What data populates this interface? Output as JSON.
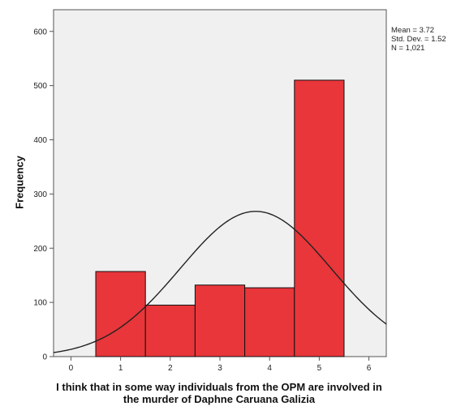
{
  "chart_data": {
    "type": "bar",
    "subtype": "histogram",
    "xlabel": "I think that in some way individuals from the OPM are involved in the murder of Daphne Caruana Galizia",
    "ylabel": "Frequency",
    "xlim": [
      -0.35,
      6.35
    ],
    "ylim": [
      0,
      640
    ],
    "x_ticks": [
      0,
      1,
      2,
      3,
      4,
      5,
      6
    ],
    "y_ticks": [
      0,
      100,
      200,
      300,
      400,
      500,
      600
    ],
    "bins": [
      {
        "center": 1,
        "value": 157
      },
      {
        "center": 2,
        "value": 95
      },
      {
        "center": 3,
        "value": 132
      },
      {
        "center": 4,
        "value": 127
      },
      {
        "center": 5,
        "value": 510
      }
    ],
    "bin_width": 1,
    "normal_curve": {
      "mean": 3.72,
      "sd": 1.52,
      "n": 1021
    },
    "stats": [
      "Mean = 3.72",
      "Std. Dev. = 1.52",
      "N = 1,021"
    ],
    "grid": false,
    "colors": {
      "bar": "#e8363a",
      "bar_edge": "#111111",
      "plot_bg": "#f0f0f0",
      "curve": "#222222"
    }
  }
}
